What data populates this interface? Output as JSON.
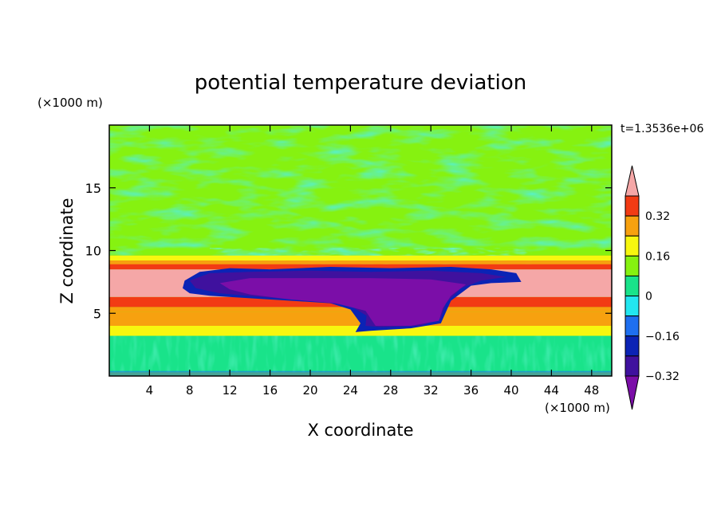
{
  "chart_data": {
    "type": "heatmap",
    "title": "potential temperature deviation",
    "xlabel": "X coordinate",
    "ylabel": "Z coordinate",
    "x_unit": "(×1000 m)",
    "y_unit": "(×1000 m)",
    "time_label": "t=1.3536e+06",
    "xlim": [
      0,
      50
    ],
    "ylim": [
      0,
      20
    ],
    "x_ticks": [
      4,
      8,
      12,
      16,
      20,
      24,
      28,
      32,
      36,
      40,
      44,
      48
    ],
    "y_ticks": [
      5,
      10,
      15
    ],
    "colorbar": {
      "levels": [
        -0.4,
        -0.32,
        -0.24,
        -0.16,
        -0.08,
        0,
        0.08,
        0.16,
        0.24,
        0.32,
        0.4
      ],
      "labeled_levels": [
        "0.32",
        "0.16",
        "0",
        "−0.16",
        "−0.32"
      ],
      "colors": [
        "#7b0ea8",
        "#3f119e",
        "#0b23b5",
        "#1e6ff0",
        "#22e6f0",
        "#19e38a",
        "#86f210",
        "#f7f70f",
        "#f7a10f",
        "#f23b14",
        "#f5a7a7"
      ],
      "extend": "both"
    },
    "layers_z_km": [
      {
        "z0": 0,
        "z1": 0.3,
        "value_class": "noisy-surface"
      },
      {
        "z0": 0.3,
        "z1": 3.2,
        "value_class": "mixed -0.08..0.08"
      },
      {
        "z0": 3.2,
        "z1": 4.0,
        "value": 0.12
      },
      {
        "z0": 4.0,
        "z1": 5.1,
        "value": 0.2
      },
      {
        "z0": 5.1,
        "z1": 5.5,
        "value": 0.22
      },
      {
        "z0": 5.5,
        "z1": 6.3,
        "value": 0.28
      },
      {
        "z0": 6.3,
        "z1": 8.5,
        "value": 0.45
      },
      {
        "z0": 8.5,
        "z1": 9.6,
        "value": 0.3
      },
      {
        "z0": 9.6,
        "z1": 20,
        "value_class": "mixed -0.08..0.08"
      }
    ],
    "cold_anomaly": {
      "x_range": [
        8,
        40
      ],
      "z_range": [
        3.4,
        8.5
      ],
      "min_value": -0.45
    }
  }
}
